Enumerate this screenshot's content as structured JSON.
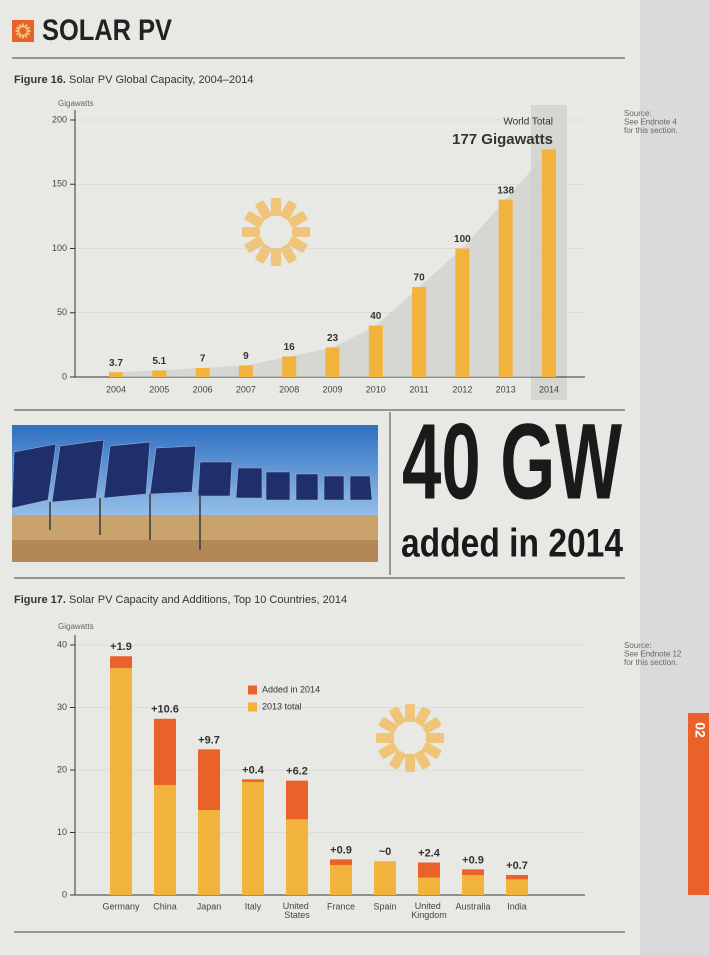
{
  "header": {
    "title": "SOLAR PV"
  },
  "callout": {
    "big": "40 GW",
    "sub": "added in 2014"
  },
  "side_tab": "02",
  "chart_data": [
    {
      "type": "bar",
      "figure_label": "Figure 16.",
      "title": "Solar PV Global Capacity, 2004–2014",
      "y_label": "Gigawatts",
      "categories": [
        "2004",
        "2005",
        "2006",
        "2007",
        "2008",
        "2009",
        "2010",
        "2011",
        "2012",
        "2013",
        "2014"
      ],
      "values": [
        3.7,
        5.1,
        7,
        9,
        16,
        23,
        40,
        70,
        100,
        138,
        177
      ],
      "value_labels": [
        "3.7",
        "5.1",
        "7",
        "9",
        "16",
        "23",
        "40",
        "70",
        "100",
        "138",
        "177 Gigawatts"
      ],
      "annotation": "World Total",
      "color": "#f2b33d",
      "ylim": [
        0,
        200
      ],
      "yticks": [
        0,
        50,
        100,
        150,
        200
      ],
      "source": [
        "Source:",
        "See Endnote 4",
        "for this section."
      ]
    },
    {
      "type": "stacked_bar",
      "figure_label": "Figure 17.",
      "title": "Solar PV Capacity and Additions, Top 10 Countries, 2014",
      "y_label": "Gigawatts",
      "categories": [
        "Germany",
        "China",
        "Japan",
        "Italy",
        "United States",
        "France",
        "Spain",
        "United Kingdom",
        "Australia",
        "India"
      ],
      "series": [
        {
          "name": "2013 total",
          "color": "#f2b33d",
          "values": [
            36.3,
            17.6,
            13.6,
            18.1,
            12.1,
            4.8,
            5.4,
            2.8,
            3.2,
            2.5
          ]
        },
        {
          "name": "Added in 2014",
          "color": "#e8622a",
          "values": [
            1.9,
            10.6,
            9.7,
            0.4,
            6.2,
            0.9,
            0,
            2.4,
            0.9,
            0.7
          ],
          "value_labels": [
            "+1.9",
            "+10.6",
            "+9.7",
            "+0.4",
            "+6.2",
            "+0.9",
            "~0",
            "+2.4",
            "+0.9",
            "+0.7"
          ]
        }
      ],
      "ylim": [
        0,
        40
      ],
      "yticks": [
        0,
        10,
        20,
        30,
        40
      ],
      "source": [
        "Source:",
        "See Endnote 12",
        "for this section."
      ]
    }
  ]
}
